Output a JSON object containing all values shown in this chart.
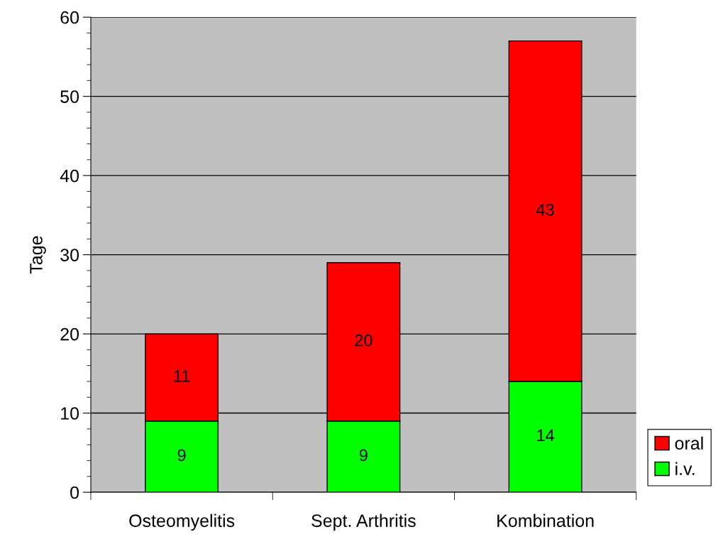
{
  "chart_data": {
    "type": "bar",
    "stacked": true,
    "ylabel": "Tage",
    "categories": [
      "Osteomyelitis",
      "Sept. Arthritis",
      "Kombination"
    ],
    "series": [
      {
        "name": "i.v.",
        "color": "#00ff00",
        "values": [
          9,
          9,
          14
        ]
      },
      {
        "name": "oral",
        "color": "#ff0000",
        "values": [
          11,
          20,
          43
        ]
      }
    ],
    "ylim": [
      0,
      60
    ],
    "yticks": [
      0,
      10,
      20,
      30,
      40,
      50,
      60
    ],
    "grid": "y",
    "legend": "bottom right",
    "data_labels": true
  }
}
